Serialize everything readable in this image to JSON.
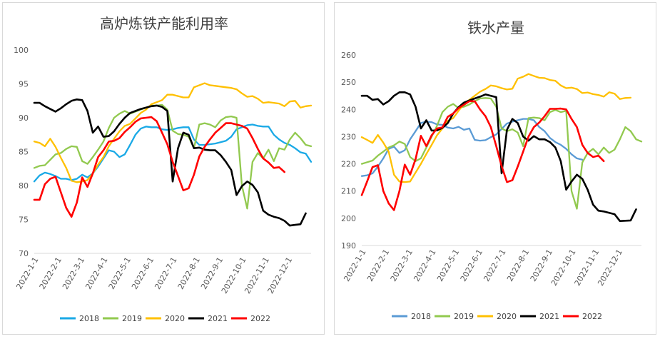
{
  "chart_data": [
    {
      "type": "line",
      "title": "高炉炼铁产能利用率",
      "xlabel": "",
      "ylabel": "",
      "x_ticks": [
        "2022-1-1",
        "2022-2-1",
        "2022-3-1",
        "2022-4-1",
        "2022-5-1",
        "2022-6-1",
        "2022-7-1",
        "2022-8-1",
        "2022-9-1",
        "2022-10-1",
        "2022-11-1",
        "2022-12-1"
      ],
      "ylim": [
        70,
        100
      ],
      "y_ticks": [
        70,
        75,
        80,
        85,
        90,
        95,
        100
      ],
      "grid": false,
      "legend": "bottom",
      "series": [
        {
          "name": "2018",
          "color": "#1aa9e6",
          "values": [
            80.6,
            81.5,
            81.9,
            81.7,
            81.4,
            81.0,
            81.0,
            80.8,
            81.0,
            81.6,
            81.2,
            81.8,
            82.8,
            84.0,
            85.2,
            85.0,
            84.2,
            84.6,
            86.0,
            87.5,
            88.4,
            88.7,
            88.6,
            88.6,
            88.3,
            88.2,
            88.3,
            88.5,
            88.6,
            88.6,
            86.8,
            86.0,
            86.0,
            86.1,
            86.2,
            86.4,
            86.6,
            87.2,
            88.3,
            88.6,
            88.9,
            89.0,
            88.8,
            88.7,
            88.7,
            87.5,
            86.8,
            86.3,
            86.0,
            85.5,
            84.9,
            84.7,
            83.5
          ]
        },
        {
          "name": "2019",
          "color": "#92c94f",
          "values": [
            82.6,
            82.9,
            83.0,
            83.8,
            84.6,
            84.8,
            85.4,
            85.8,
            85.7,
            83.6,
            83.2,
            84.2,
            85.3,
            86.5,
            88.5,
            90.0,
            90.6,
            91.0,
            90.6,
            90.9,
            91.2,
            91.5,
            91.8,
            91.8,
            91.9,
            91.2,
            88.1,
            87.6,
            87.5,
            87.2,
            85.5,
            89.0,
            89.2,
            89.0,
            88.6,
            89.6,
            90.1,
            90.2,
            90.0,
            80.0,
            76.6,
            83.5,
            84.8,
            84.0,
            85.3,
            83.6,
            85.5,
            85.3,
            86.8,
            87.8,
            87.0,
            86.0,
            85.8
          ]
        },
        {
          "name": "2020",
          "color": "#ffc000",
          "values": [
            86.5,
            86.3,
            85.8,
            86.9,
            85.7,
            84.1,
            82.6,
            80.7,
            80.5,
            80.6,
            80.8,
            81.8,
            83.1,
            84.2,
            85.8,
            86.9,
            88.0,
            88.8,
            89.1,
            89.9,
            90.7,
            91.2,
            92.0,
            92.3,
            92.6,
            93.4,
            93.4,
            93.2,
            93.0,
            93.0,
            94.5,
            94.8,
            95.1,
            94.8,
            94.7,
            94.6,
            94.5,
            94.4,
            94.2,
            93.6,
            93.1,
            93.2,
            92.8,
            92.2,
            92.3,
            92.2,
            92.1,
            91.7,
            92.4,
            92.5,
            91.5,
            91.7,
            91.8
          ]
        },
        {
          "name": "2021",
          "color": "#000000",
          "values": [
            92.2,
            92.2,
            91.7,
            91.3,
            90.9,
            91.4,
            92.0,
            92.5,
            92.7,
            92.6,
            91.0,
            87.8,
            88.7,
            87.2,
            87.3,
            88.0,
            89.1,
            90.0,
            90.7,
            91.0,
            91.3,
            91.5,
            91.7,
            91.8,
            91.6,
            91.0,
            80.6,
            85.5,
            87.8,
            87.5,
            85.5,
            85.6,
            85.3,
            85.2,
            85.2,
            84.5,
            83.5,
            82.3,
            78.6,
            79.9,
            80.6,
            80.1,
            79.0,
            76.3,
            75.7,
            75.4,
            75.2,
            74.8,
            74.1,
            74.2,
            74.3,
            75.9
          ]
        },
        {
          "name": "2022",
          "color": "#ff0000",
          "values": [
            77.9,
            77.9,
            80.2,
            81.0,
            81.3,
            79.0,
            76.7,
            75.4,
            77.5,
            81.2,
            79.8,
            81.8,
            84.2,
            85.2,
            86.5,
            86.6,
            87.0,
            87.9,
            88.6,
            89.4,
            89.9,
            90.0,
            90.1,
            89.5,
            87.8,
            86.1,
            83.5,
            81.4,
            79.3,
            79.6,
            81.6,
            84.3,
            85.7,
            86.8,
            87.8,
            88.5,
            89.2,
            89.2,
            89.0,
            88.8,
            88.4,
            87.0,
            85.4,
            84.0,
            83.4,
            82.6,
            82.7,
            82.0
          ]
        }
      ]
    },
    {
      "type": "line",
      "title": "铁水产量",
      "xlabel": "",
      "ylabel": "",
      "x_ticks": [
        "2022-1-1",
        "2022-2-1",
        "2022-3-1",
        "2022-4-1",
        "2022-5-1",
        "2022-6-1",
        "2022-7-1",
        "2022-8-1",
        "2022-9-1",
        "2022-10-1",
        "2022-11-1",
        "2022-12-1"
      ],
      "ylim": [
        190,
        260
      ],
      "y_ticks": [
        190,
        200,
        210,
        220,
        230,
        240,
        250,
        260
      ],
      "grid": false,
      "legend": "bottom",
      "series": [
        {
          "name": "2018",
          "color": "#5b9bd5",
          "values": [
            215.5,
            215.8,
            216.5,
            219.0,
            222.0,
            225.5,
            226.3,
            224.0,
            225.0,
            229.0,
            232.0,
            235.0,
            235.5,
            235.3,
            234.5,
            234.3,
            233.3,
            233.0,
            233.6,
            232.5,
            233.0,
            228.8,
            228.5,
            228.7,
            229.8,
            230.8,
            232.8,
            234.8,
            235.5,
            236.0,
            236.5,
            236.5,
            236.0,
            233.5,
            232.0,
            229.5,
            228.0,
            227.0,
            225.5,
            223.5,
            222.0,
            221.5
          ]
        },
        {
          "name": "2019",
          "color": "#92c94f",
          "values": [
            220.0,
            220.6,
            221.2,
            223.0,
            224.5,
            226.0,
            226.8,
            228.2,
            227.3,
            222.5,
            221.0,
            222.0,
            226.0,
            230.0,
            234.0,
            239.0,
            241.0,
            242.0,
            240.5,
            241.0,
            241.8,
            243.0,
            244.0,
            244.2,
            244.0,
            241.0,
            233.0,
            232.0,
            232.7,
            231.5,
            226.5,
            236.8,
            237.0,
            236.8,
            236.0,
            239.0,
            239.8,
            239.0,
            239.5,
            210.0,
            203.5,
            220.5,
            224.0,
            225.5,
            223.5,
            226.0,
            224.0,
            225.2,
            229.0,
            233.5,
            232.0,
            229.0,
            228.2
          ]
        },
        {
          "name": "2020",
          "color": "#ffc000",
          "values": [
            229.8,
            228.8,
            227.7,
            230.6,
            227.8,
            224.5,
            216.0,
            213.5,
            213.3,
            213.5,
            216.8,
            220.0,
            223.6,
            227.0,
            230.5,
            233.0,
            235.8,
            236.8,
            239.5,
            242.0,
            243.5,
            245.0,
            246.5,
            247.5,
            248.8,
            248.5,
            247.8,
            247.3,
            247.6,
            251.3,
            252.0,
            253.0,
            252.3,
            251.6,
            251.5,
            250.8,
            250.5,
            248.8,
            247.8,
            248.0,
            247.5,
            246.0,
            246.2,
            245.6,
            245.3,
            244.7,
            246.3,
            245.8,
            243.8,
            244.2,
            244.3
          ]
        },
        {
          "name": "2021",
          "color": "#000000",
          "values": [
            245.0,
            245.0,
            243.5,
            243.8,
            241.8,
            243.0,
            245.0,
            246.3,
            246.3,
            245.5,
            241.0,
            233.0,
            236.0,
            232.2,
            232.3,
            233.2,
            235.0,
            238.5,
            240.8,
            242.5,
            243.3,
            244.0,
            244.7,
            245.5,
            245.0,
            244.5,
            216.5,
            232.5,
            236.5,
            235.0,
            230.0,
            228.5,
            230.2,
            229.0,
            229.0,
            228.0,
            226.0,
            221.0,
            210.5,
            213.5,
            216.0,
            214.5,
            210.5,
            205.0,
            202.8,
            202.5,
            202.0,
            201.5,
            199.0,
            199.1,
            199.2,
            203.3
          ]
        },
        {
          "name": "2022",
          "color": "#ff0000",
          "values": [
            208.5,
            213.5,
            218.8,
            219.5,
            210.0,
            205.5,
            203.0,
            210.0,
            219.7,
            216.0,
            221.7,
            230.3,
            226.5,
            230.5,
            233.0,
            233.4,
            237.3,
            238.5,
            240.5,
            241.7,
            243.0,
            243.0,
            240.0,
            237.5,
            233.5,
            226.5,
            219.2,
            213.3,
            214.0,
            219.0,
            224.5,
            230.0,
            233.5,
            235.2,
            237.5,
            240.2,
            240.2,
            240.3,
            240.0,
            236.5,
            233.5,
            227.0,
            224.0,
            222.5,
            223.0,
            221.0
          ]
        }
      ]
    }
  ]
}
